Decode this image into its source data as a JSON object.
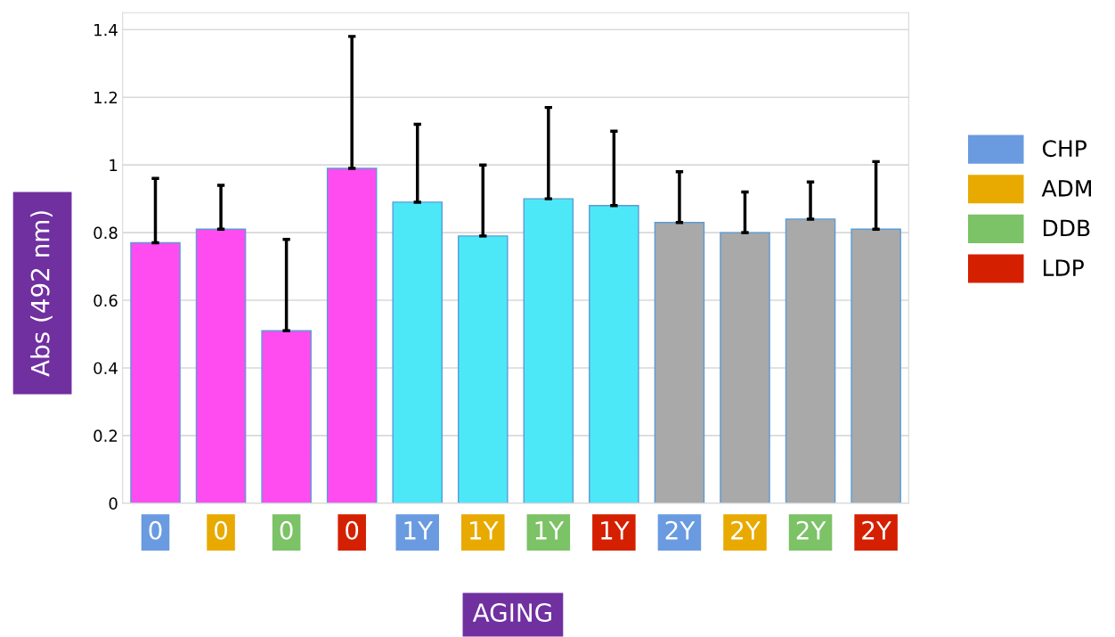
{
  "chart_data": {
    "type": "bar",
    "ylabel": "Abs (492 nm)",
    "xlabel": "AGING",
    "categories": [
      "0",
      "0",
      "0",
      "0",
      "1Y",
      "1Y",
      "1Y",
      "1Y",
      "2Y",
      "2Y",
      "2Y",
      "2Y"
    ],
    "series": [
      {
        "colors": [
          "#ff4cf0",
          "#ff4cf0",
          "#ff4cf0",
          "#ff4cf0",
          "#4de8f7",
          "#4de8f7",
          "#4de8f7",
          "#4de8f7",
          "#a9a9a9",
          "#a9a9a9",
          "#a9a9a9",
          "#a9a9a9"
        ],
        "values": [
          0.77,
          0.81,
          0.51,
          0.99,
          0.89,
          0.79,
          0.9,
          0.88,
          0.83,
          0.8,
          0.84,
          0.81
        ],
        "errors": [
          [
            0.77,
            0.96
          ],
          [
            0.81,
            0.94
          ],
          [
            0.51,
            0.78
          ],
          [
            0.99,
            1.38
          ],
          [
            0.89,
            1.12
          ],
          [
            0.79,
            1.0
          ],
          [
            0.9,
            1.17
          ],
          [
            0.88,
            1.1
          ],
          [
            0.83,
            0.98
          ],
          [
            0.8,
            0.92
          ],
          [
            0.84,
            0.95
          ],
          [
            0.81,
            1.01
          ]
        ]
      },
      {
        "name": "CHP",
        "color": "#6a9be0",
        "values": [
          null,
          null,
          null,
          null,
          null,
          null,
          null,
          null,
          null,
          null,
          null,
          null
        ]
      },
      {
        "name": "ADM",
        "color": "#e8aa00",
        "values": [
          null,
          null,
          null,
          null,
          null,
          null,
          null,
          null,
          null,
          null,
          null,
          null
        ]
      },
      {
        "name": "DDB",
        "color": "#7cc266",
        "values": [
          null,
          null,
          null,
          null,
          null,
          null,
          null,
          null,
          null,
          null,
          null,
          null
        ]
      },
      {
        "name": "LDP",
        "color": "#d42000",
        "values": [
          null,
          null,
          null,
          null,
          null,
          null,
          null,
          null,
          null,
          null,
          null,
          null
        ]
      }
    ],
    "ylim": [
      0,
      1.45
    ],
    "yticks": [
      0,
      0.2,
      0.4,
      0.6,
      0.8,
      1,
      1.2,
      1.4
    ],
    "grid": "y",
    "legend": "right"
  }
}
